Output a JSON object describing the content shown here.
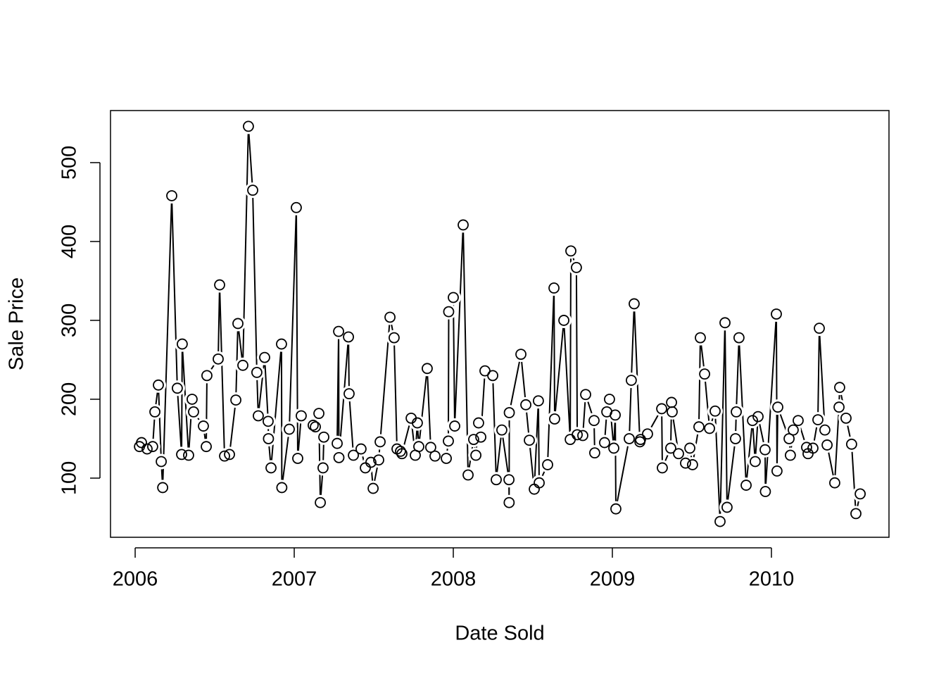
{
  "chart_data": {
    "type": "line_points",
    "x_label": "Date Sold",
    "y_label": "Sale Price",
    "xlim": [
      2005.845,
      2010.739
    ],
    "ylim": [
      25,
      566
    ],
    "xticks": [
      2006,
      2007,
      2008,
      2009,
      2010
    ],
    "yticks": [
      100,
      200,
      300,
      400,
      500
    ],
    "color": "#000000",
    "x": [
      2006.027,
      2006.04,
      2006.075,
      2006.11,
      2006.124,
      2006.146,
      2006.164,
      2006.173,
      2006.23,
      2006.265,
      2006.292,
      2006.296,
      2006.336,
      2006.358,
      2006.367,
      2006.429,
      2006.447,
      2006.451,
      2006.522,
      2006.531,
      2006.562,
      2006.593,
      2006.633,
      2006.646,
      2006.677,
      2006.712,
      2006.739,
      2006.765,
      2006.774,
      2006.814,
      2006.836,
      2006.838,
      2006.854,
      2006.92,
      2006.922,
      2006.969,
      2007.013,
      2007.022,
      2007.044,
      2007.119,
      2007.133,
      2007.155,
      2007.164,
      2007.181,
      2007.186,
      2007.27,
      2007.279,
      2007.281,
      2007.341,
      2007.345,
      2007.372,
      2007.42,
      2007.447,
      2007.482,
      2007.496,
      2007.531,
      2007.54,
      2007.602,
      2007.628,
      2007.646,
      2007.668,
      2007.677,
      2007.735,
      2007.761,
      2007.774,
      2007.783,
      2007.836,
      2007.858,
      2007.885,
      2007.956,
      2007.969,
      2007.971,
      2008.0,
      2008.009,
      2008.062,
      2008.093,
      2008.128,
      2008.142,
      2008.159,
      2008.173,
      2008.199,
      2008.248,
      2008.27,
      2008.305,
      2008.35,
      2008.351,
      2008.352,
      2008.425,
      2008.456,
      2008.478,
      2008.509,
      2008.535,
      2008.54,
      2008.593,
      2008.633,
      2008.637,
      2008.695,
      2008.735,
      2008.739,
      2008.774,
      2008.779,
      2008.814,
      2008.832,
      2008.885,
      2008.889,
      2008.951,
      2008.965,
      2008.982,
      2009.009,
      2009.018,
      2009.022,
      2009.106,
      2009.119,
      2009.137,
      2009.173,
      2009.177,
      2009.221,
      2009.31,
      2009.314,
      2009.367,
      2009.372,
      2009.376,
      2009.416,
      2009.46,
      2009.487,
      2009.504,
      2009.544,
      2009.553,
      2009.58,
      2009.611,
      2009.646,
      2009.677,
      2009.708,
      2009.721,
      2009.774,
      2009.779,
      2009.796,
      2009.841,
      2009.881,
      2009.898,
      2009.916,
      2009.96,
      2009.962,
      2010.031,
      2010.035,
      2010.04,
      2010.111,
      2010.119,
      2010.137,
      2010.168,
      2010.221,
      2010.23,
      2010.261,
      2010.292,
      2010.301,
      2010.336,
      2010.35,
      2010.398,
      2010.425,
      2010.429,
      2010.469,
      2010.504,
      2010.531,
      2010.558
    ],
    "values": [
      140,
      145,
      137,
      140,
      184,
      218,
      121,
      88,
      458,
      214,
      130,
      270,
      129,
      200,
      184,
      166,
      140,
      230,
      251,
      345,
      128,
      130,
      199,
      296,
      243,
      546,
      465,
      234,
      179,
      253,
      172,
      150,
      113,
      270,
      88,
      162,
      443,
      125,
      179,
      167,
      165,
      182,
      69,
      113,
      152,
      144,
      286,
      126,
      279,
      207,
      129,
      137,
      113,
      120,
      87,
      123,
      146,
      304,
      278,
      137,
      134,
      131,
      176,
      129,
      170,
      140,
      239,
      139,
      128,
      125,
      147,
      311,
      329,
      166,
      421,
      104,
      149,
      129,
      170,
      152,
      236,
      230,
      98,
      161,
      98,
      69,
      183,
      257,
      193,
      148,
      86,
      198,
      94,
      117,
      341,
      175,
      300,
      149,
      388,
      367,
      155,
      154,
      206,
      173,
      132,
      145,
      184,
      200,
      138,
      180,
      61,
      150,
      224,
      321,
      146,
      149,
      156,
      188,
      113,
      138,
      196,
      184,
      131,
      119,
      138,
      117,
      165,
      278,
      232,
      163,
      185,
      45,
      297,
      63,
      150,
      184,
      278,
      91,
      173,
      121,
      178,
      136,
      83,
      308,
      109,
      190,
      150,
      129,
      161,
      173,
      139,
      131,
      138,
      174,
      290,
      161,
      142,
      94,
      190,
      215,
      176,
      143,
      55,
      80
    ]
  }
}
